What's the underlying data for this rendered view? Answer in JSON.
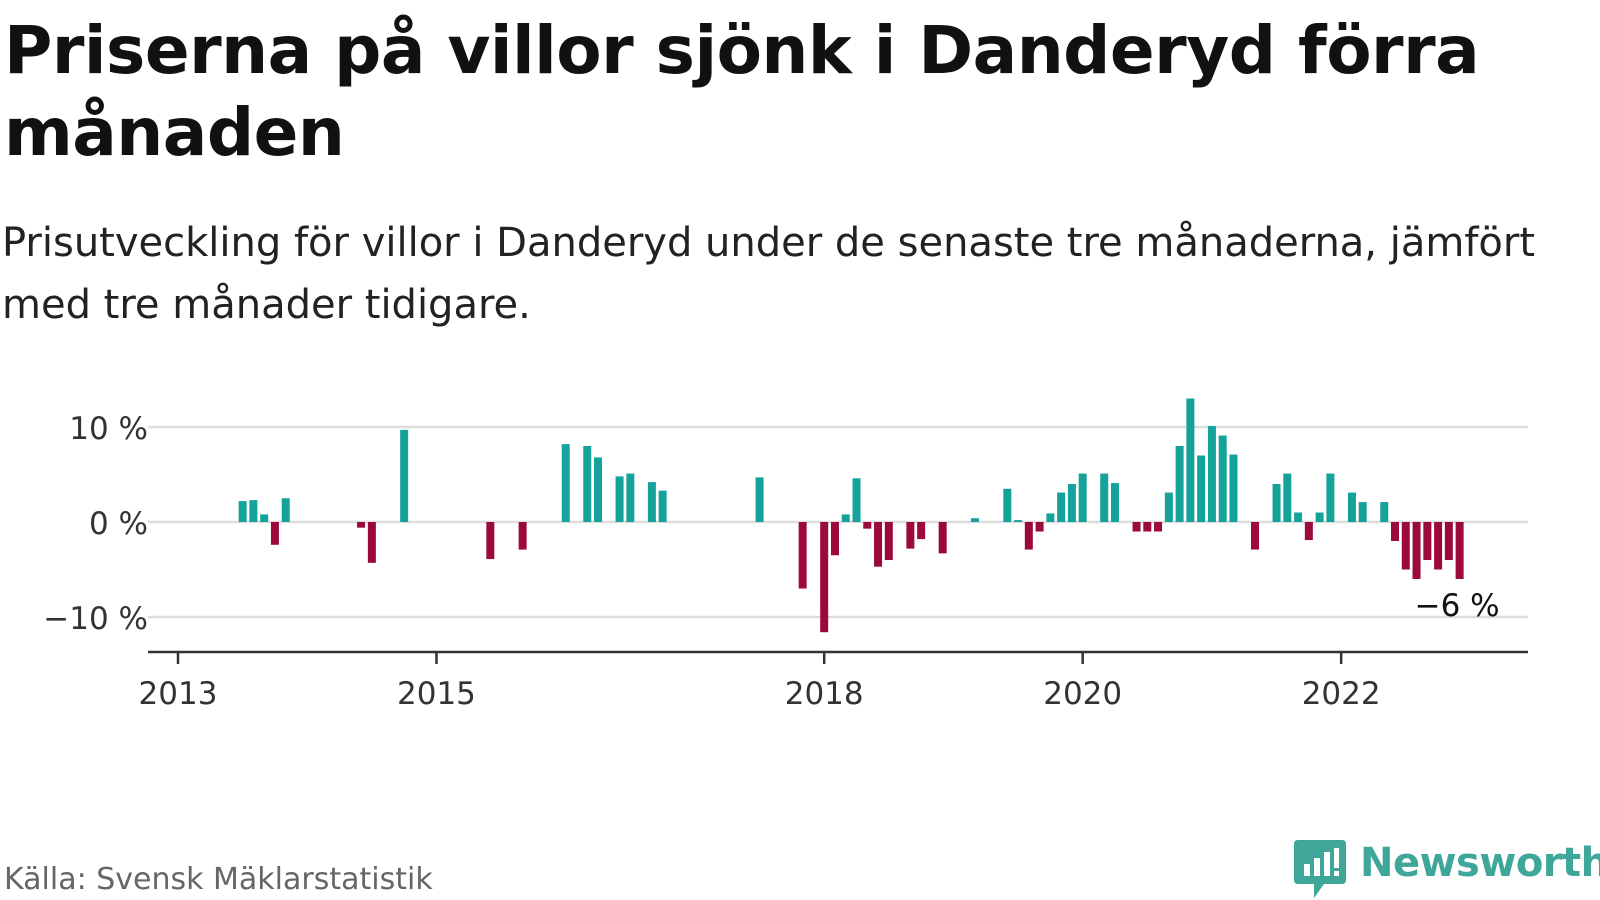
{
  "title": "Priserna på villor sjönk i Danderyd förra månaden",
  "subtitle": "Prisutveckling för villor i Danderyd under de senaste tre månaderna, jämfört med tre månader tidigare.",
  "source": "Källa: Svensk Mäklarstatistik",
  "brand": "Newsworthy",
  "colors": {
    "positive": "#14a39a",
    "negative": "#9c0a3d",
    "grid": "#dddddd",
    "axis": "#333333",
    "brand": "#3fa69a"
  },
  "chart_data": {
    "type": "bar",
    "ylim": [
      -13,
      13
    ],
    "y_ticks": [
      {
        "value": 10,
        "label": "10 %"
      },
      {
        "value": 0,
        "label": "0 %"
      },
      {
        "value": -10,
        "label": "−10 %"
      }
    ],
    "x_range": [
      "2013-01",
      "2023-07"
    ],
    "x_ticks": [
      {
        "date": "2013-01",
        "label": "2013"
      },
      {
        "date": "2015-01",
        "label": "2015"
      },
      {
        "date": "2018-01",
        "label": "2018"
      },
      {
        "date": "2020-01",
        "label": "2020"
      },
      {
        "date": "2022-01",
        "label": "2022"
      }
    ],
    "annotation": {
      "date": "2022-12",
      "label": "−6 %"
    },
    "series": [
      {
        "points": [
          [
            "2013-07",
            2.2
          ],
          [
            "2013-08",
            2.3
          ],
          [
            "2013-09",
            0.8
          ],
          [
            "2013-10",
            -2.4
          ],
          [
            "2013-11",
            2.5
          ],
          [
            "2014-06",
            -0.6
          ],
          [
            "2014-07",
            -4.3
          ],
          [
            "2014-10",
            9.7
          ],
          [
            "2015-06",
            -3.9
          ],
          [
            "2015-09",
            -2.9
          ],
          [
            "2016-01",
            8.2
          ],
          [
            "2016-03",
            8.0
          ],
          [
            "2016-04",
            6.8
          ],
          [
            "2016-06",
            4.8
          ],
          [
            "2016-07",
            5.1
          ],
          [
            "2016-09",
            4.2
          ],
          [
            "2016-10",
            3.3
          ],
          [
            "2017-07",
            4.7
          ],
          [
            "2017-11",
            -7.0
          ],
          [
            "2018-01",
            -11.6
          ],
          [
            "2018-02",
            -3.5
          ],
          [
            "2018-03",
            0.8
          ],
          [
            "2018-04",
            4.6
          ],
          [
            "2018-05",
            -0.7
          ],
          [
            "2018-06",
            -4.7
          ],
          [
            "2018-07",
            -4.0
          ],
          [
            "2018-09",
            -2.8
          ],
          [
            "2018-10",
            -1.8
          ],
          [
            "2018-12",
            -3.3
          ],
          [
            "2019-03",
            0.4
          ],
          [
            "2019-06",
            3.5
          ],
          [
            "2019-07",
            0.2
          ],
          [
            "2019-08",
            -2.9
          ],
          [
            "2019-09",
            -1.0
          ],
          [
            "2019-10",
            0.9
          ],
          [
            "2019-11",
            3.1
          ],
          [
            "2019-12",
            4.0
          ],
          [
            "2020-01",
            5.1
          ],
          [
            "2020-03",
            5.1
          ],
          [
            "2020-04",
            4.1
          ],
          [
            "2020-06",
            -1.0
          ],
          [
            "2020-07",
            -1.0
          ],
          [
            "2020-08",
            -1.0
          ],
          [
            "2020-09",
            3.1
          ],
          [
            "2020-10",
            8.0
          ],
          [
            "2020-11",
            13.0
          ],
          [
            "2020-12",
            7.0
          ],
          [
            "2021-01",
            10.1
          ],
          [
            "2021-02",
            9.1
          ],
          [
            "2021-03",
            7.1
          ],
          [
            "2021-05",
            -2.9
          ],
          [
            "2021-07",
            4.0
          ],
          [
            "2021-08",
            5.1
          ],
          [
            "2021-09",
            1.0
          ],
          [
            "2021-10",
            -1.9
          ],
          [
            "2021-11",
            1.0
          ],
          [
            "2021-12",
            5.1
          ],
          [
            "2022-02",
            3.1
          ],
          [
            "2022-03",
            2.1
          ],
          [
            "2022-05",
            2.1
          ],
          [
            "2022-06",
            -2.0
          ],
          [
            "2022-07",
            -5.0
          ],
          [
            "2022-08",
            -6.0
          ],
          [
            "2022-09",
            -4.0
          ],
          [
            "2022-10",
            -5.0
          ],
          [
            "2022-11",
            -4.0
          ],
          [
            "2022-12",
            -6.0
          ]
        ]
      }
    ]
  }
}
